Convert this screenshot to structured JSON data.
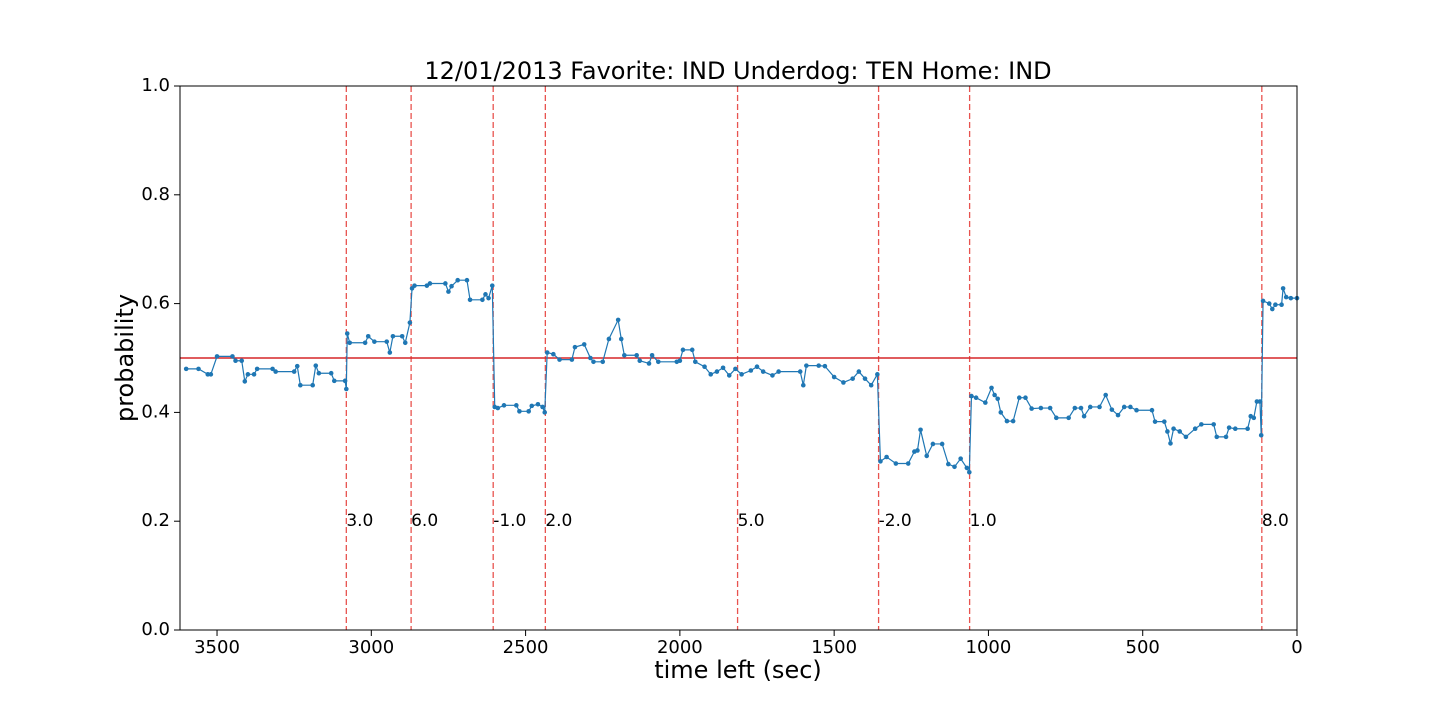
{
  "chart_data": {
    "type": "line",
    "title": "12/01/2013 Favorite: IND Underdog: TEN Home: IND",
    "x_label": "time left (sec)",
    "y_label": "probability",
    "xlim": [
      3620,
      0
    ],
    "ylim": [
      0,
      1
    ],
    "xticks": [
      3500,
      3000,
      2500,
      2000,
      1500,
      1000,
      500,
      0
    ],
    "yticks": [
      {
        "value": 0,
        "label": "0.0"
      },
      0.2,
      0.4,
      0.6,
      0.8,
      {
        "value": 1,
        "label": "1.0"
      }
    ],
    "x": [
      3600,
      3560,
      3530,
      3520,
      3500,
      3450,
      3440,
      3420,
      3410,
      3400,
      3380,
      3370,
      3320,
      3310,
      3250,
      3240,
      3230,
      3190,
      3180,
      3170,
      3130,
      3120,
      3085,
      3081,
      3078,
      3070,
      3020,
      3010,
      2990,
      2950,
      2940,
      2930,
      2900,
      2890,
      2875,
      2868,
      2860,
      2820,
      2810,
      2760,
      2750,
      2740,
      2720,
      2690,
      2680,
      2640,
      2630,
      2620,
      2608,
      2600,
      2590,
      2570,
      2530,
      2520,
      2490,
      2480,
      2460,
      2445,
      2438,
      2430,
      2410,
      2390,
      2350,
      2340,
      2310,
      2290,
      2280,
      2250,
      2230,
      2200,
      2190,
      2180,
      2140,
      2130,
      2100,
      2090,
      2070,
      2010,
      2000,
      1990,
      1960,
      1950,
      1920,
      1900,
      1880,
      1860,
      1840,
      1820,
      1800,
      1770,
      1750,
      1730,
      1700,
      1680,
      1610,
      1600,
      1590,
      1550,
      1530,
      1500,
      1470,
      1440,
      1420,
      1400,
      1380,
      1360,
      1350,
      1330,
      1300,
      1260,
      1240,
      1230,
      1220,
      1200,
      1180,
      1150,
      1130,
      1110,
      1090,
      1070,
      1062,
      1055,
      1040,
      1010,
      990,
      980,
      970,
      960,
      940,
      920,
      900,
      880,
      860,
      830,
      800,
      780,
      740,
      720,
      700,
      690,
      670,
      640,
      620,
      600,
      580,
      560,
      540,
      520,
      470,
      460,
      430,
      420,
      410,
      400,
      380,
      360,
      330,
      310,
      270,
      260,
      230,
      220,
      200,
      160,
      150,
      140,
      130,
      120,
      116,
      110,
      90,
      80,
      70,
      50,
      45,
      35,
      20,
      0
    ],
    "series": [
      {
        "color": "#1f77b4",
        "values": [
          0.48,
          0.48,
          0.47,
          0.47,
          0.503,
          0.503,
          0.495,
          0.495,
          0.457,
          0.47,
          0.47,
          0.48,
          0.48,
          0.475,
          0.475,
          0.485,
          0.45,
          0.45,
          0.486,
          0.472,
          0.472,
          0.458,
          0.458,
          0.443,
          0.545,
          0.528,
          0.528,
          0.54,
          0.53,
          0.53,
          0.51,
          0.54,
          0.54,
          0.528,
          0.565,
          0.628,
          0.633,
          0.633,
          0.637,
          0.637,
          0.622,
          0.632,
          0.643,
          0.643,
          0.607,
          0.607,
          0.617,
          0.61,
          0.633,
          0.41,
          0.408,
          0.413,
          0.413,
          0.402,
          0.402,
          0.412,
          0.415,
          0.41,
          0.4,
          0.51,
          0.507,
          0.497,
          0.497,
          0.52,
          0.525,
          0.5,
          0.493,
          0.493,
          0.535,
          0.57,
          0.535,
          0.505,
          0.505,
          0.495,
          0.49,
          0.505,
          0.493,
          0.493,
          0.495,
          0.515,
          0.515,
          0.493,
          0.484,
          0.47,
          0.475,
          0.482,
          0.468,
          0.48,
          0.47,
          0.477,
          0.484,
          0.475,
          0.468,
          0.475,
          0.475,
          0.45,
          0.486,
          0.486,
          0.485,
          0.465,
          0.455,
          0.462,
          0.475,
          0.462,
          0.45,
          0.47,
          0.31,
          0.318,
          0.306,
          0.306,
          0.328,
          0.33,
          0.368,
          0.32,
          0.342,
          0.342,
          0.305,
          0.3,
          0.315,
          0.298,
          0.29,
          0.43,
          0.427,
          0.418,
          0.445,
          0.432,
          0.425,
          0.4,
          0.384,
          0.384,
          0.427,
          0.427,
          0.407,
          0.408,
          0.408,
          0.39,
          0.39,
          0.408,
          0.408,
          0.393,
          0.41,
          0.41,
          0.432,
          0.405,
          0.395,
          0.41,
          0.41,
          0.404,
          0.404,
          0.383,
          0.383,
          0.365,
          0.343,
          0.37,
          0.365,
          0.355,
          0.37,
          0.378,
          0.378,
          0.355,
          0.355,
          0.372,
          0.37,
          0.37,
          0.393,
          0.39,
          0.42,
          0.42,
          0.358,
          0.605,
          0.6,
          0.59,
          0.598,
          0.598,
          0.628,
          0.612,
          0.61,
          0.61
        ]
      }
    ],
    "reference_line": {
      "y": 0.5,
      "color": "#d62728"
    },
    "events": {
      "color": "#e8534f",
      "items": [
        {
          "x": 3081,
          "label": "3.0"
        },
        {
          "x": 2871,
          "label": "6.0"
        },
        {
          "x": 2605,
          "label": "-1.0"
        },
        {
          "x": 2436,
          "label": "2.0"
        },
        {
          "x": 1813,
          "label": "5.0"
        },
        {
          "x": 1356,
          "label": "-2.0"
        },
        {
          "x": 1061,
          "label": "1.0"
        },
        {
          "x": 114,
          "label": "8.0"
        }
      ]
    }
  }
}
